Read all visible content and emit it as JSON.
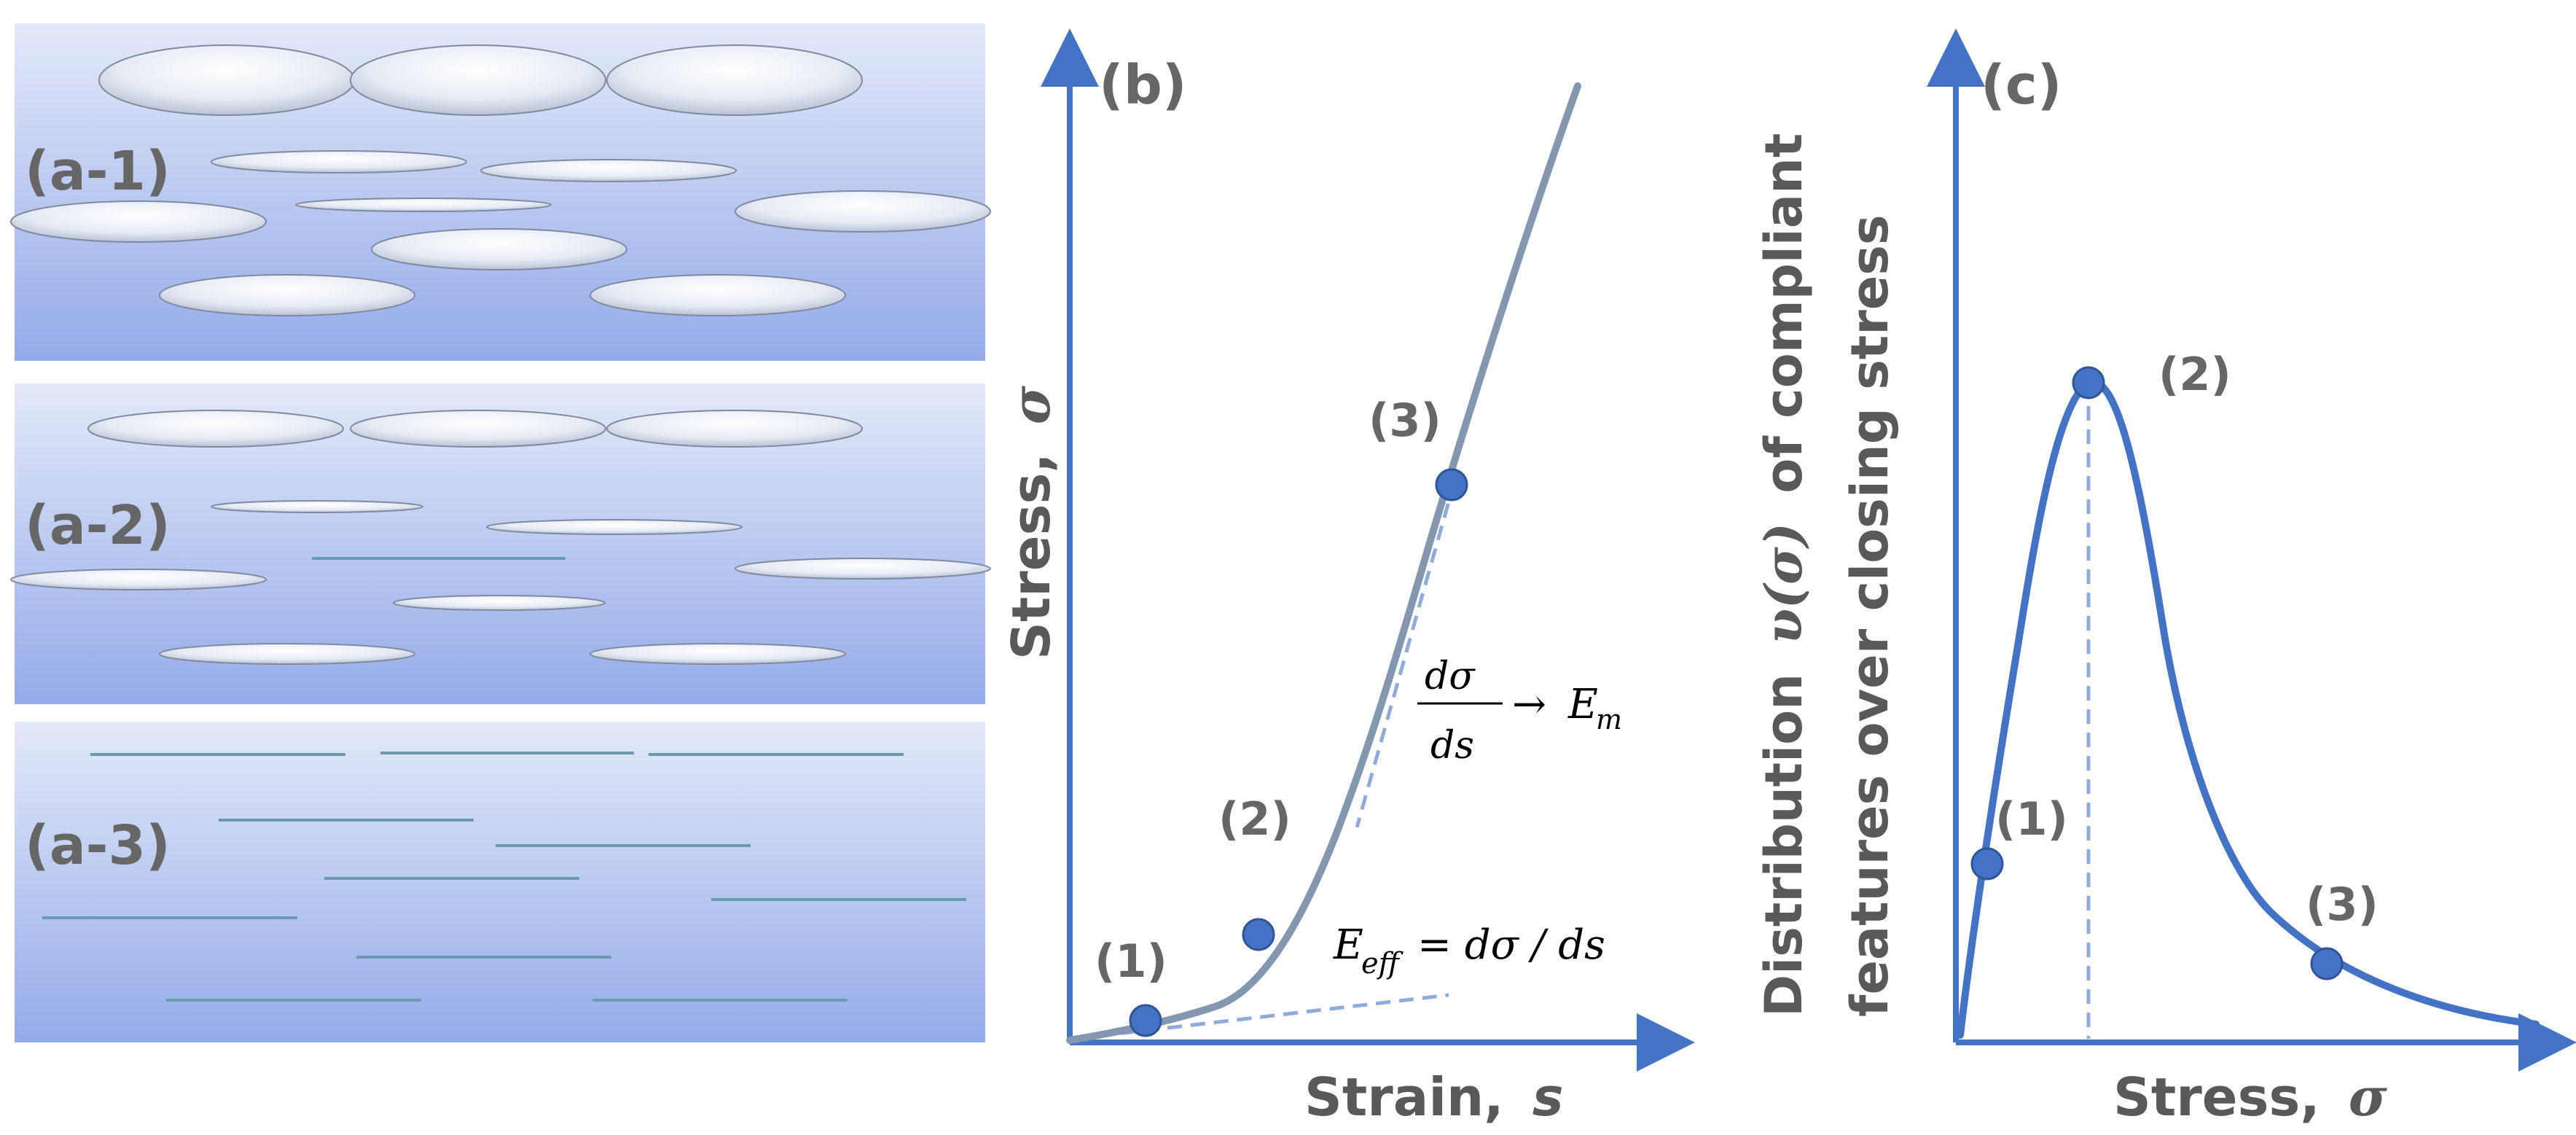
{
  "panel_a": {
    "labels": [
      "(a-1)",
      "(a-2)",
      "(a-3)"
    ]
  },
  "panel_b": {
    "label": "(b)",
    "ylabel": "Stress,",
    "ylabel_symbol": "σ",
    "xlabel": "Strain,",
    "xlabel_symbol": "s",
    "points": [
      "(1)",
      "(2)",
      "(3)"
    ],
    "eq_modulus": {
      "num": "dσ",
      "den": "ds",
      "arrow": "→",
      "E": "E",
      "sub": "m"
    },
    "eq_effective": {
      "E": "E",
      "sub": "eff",
      "rhs": "= dσ / ds"
    }
  },
  "panel_c": {
    "label": "(c)",
    "ylabel_line1_a": "Distribution",
    "ylabel_line1_sym": "υ(σ)",
    "ylabel_line1_b": "of compliant",
    "ylabel_line2": "features over closing stress",
    "xlabel": "Stress,",
    "xlabel_symbol": "σ",
    "points": [
      "(1)",
      "(2)",
      "(3)"
    ]
  },
  "colors": {
    "axis": "#4472c4",
    "curve_b": "#8497b0",
    "curve_c": "#4472c4",
    "dot": "#4472c4",
    "dot_edge": "#2f5597",
    "dash": "#8faadc",
    "crack": "#6a9ab0",
    "panel_top": "#dfe6f8",
    "panel_bottom": "#97aeea"
  }
}
